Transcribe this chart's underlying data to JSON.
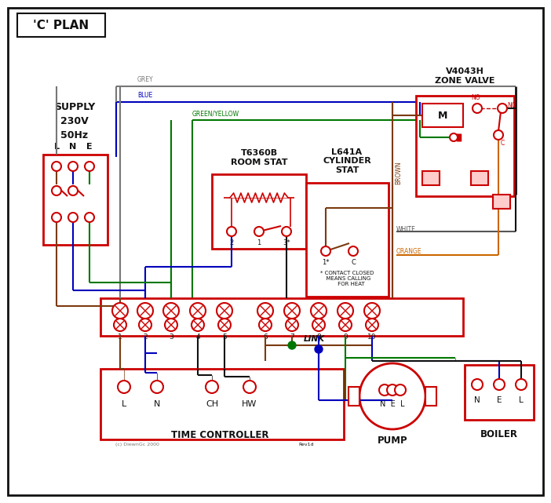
{
  "red": "#cc0000",
  "blue": "#0000bb",
  "green": "#007700",
  "grey": "#777777",
  "brown": "#7B3A10",
  "orange": "#cc6600",
  "black": "#111111",
  "white": "#ffffff",
  "title": "'C' PLAN",
  "supply_text": "SUPPLY\n230V\n50Hz",
  "zone_valve_text": "V4043H\nZONE VALVE",
  "room_stat_text": "T6360B\nROOM STAT",
  "cylinder_stat_text": "L641A\nCYLINDER\nSTAT",
  "time_controller_text": "TIME CONTROLLER",
  "pump_text": "PUMP",
  "boiler_text": "BOILER",
  "link_text": "LINK",
  "copyright_text": "(c) DiewnGc 2000",
  "rev_text": "Rev1d"
}
